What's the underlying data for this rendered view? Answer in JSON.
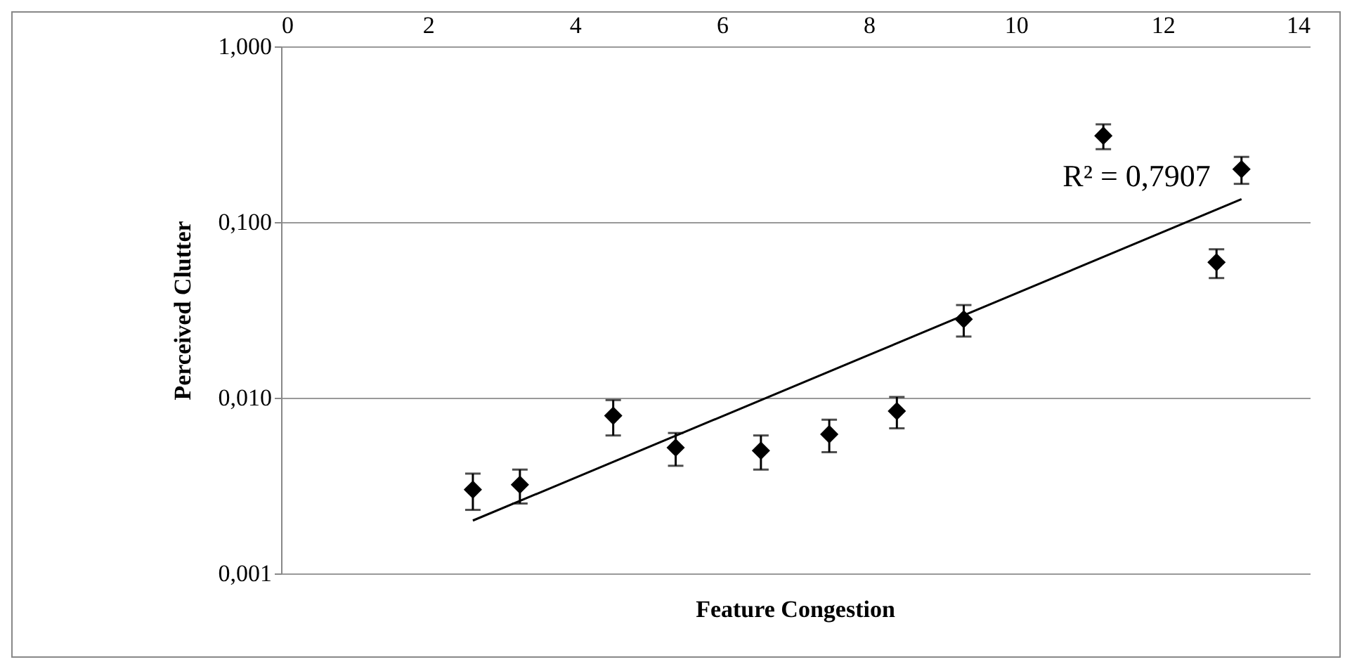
{
  "chart_data": {
    "type": "scatter",
    "xlabel": "Feature Congestion",
    "ylabel": "Perceived Clutter",
    "x": [
      2.61,
      3.25,
      4.52,
      5.37,
      6.53,
      7.46,
      8.38,
      9.29,
      11.19,
      12.73,
      13.07
    ],
    "series": [
      {
        "color": "#000000",
        "marker": "diamond",
        "values": [
          0.003,
          0.0032,
          0.0079,
          0.0052,
          0.005,
          0.0062,
          0.0084,
          0.028,
          0.31,
          0.059,
          0.2
        ],
        "errors": [
          0.0007,
          0.0007,
          0.0018,
          0.0011,
          0.0011,
          0.0013,
          0.0017,
          0.0057,
          0.05,
          0.011,
          0.035
        ]
      },
      {
        "type": "line",
        "color": "#000000",
        "x": [
          2.61,
          13.07
        ],
        "values": [
          0.002,
          0.135
        ]
      }
    ],
    "annotations": [
      "R² = 0,7907"
    ],
    "log": "y",
    "grid": "y",
    "xlim": [
      0,
      14
    ],
    "xticks": [
      0,
      2,
      4,
      6,
      8,
      10,
      12,
      14
    ],
    "ylim": [
      0.001,
      1
    ],
    "yticks": [
      {
        "value": 0.001,
        "label": "0,001"
      },
      {
        "value": 0.01,
        "label": "0,010"
      },
      {
        "value": 0.1,
        "label": "0,100"
      },
      {
        "value": 1,
        "label": "1,000"
      }
    ]
  }
}
